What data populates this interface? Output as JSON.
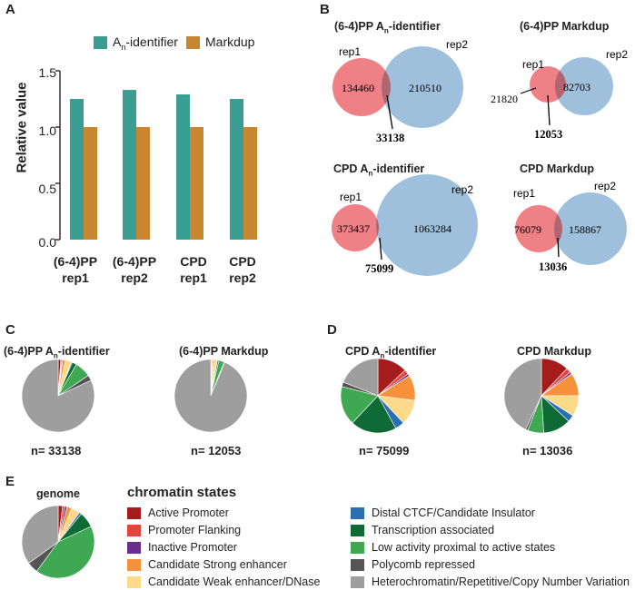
{
  "panels": {
    "a": "A",
    "b": "B",
    "c": "C",
    "d": "D",
    "e": "E"
  },
  "colors": {
    "identifier": "#3a9e92",
    "markdup": "#c8862e",
    "rep1": "#ee8086",
    "rep2": "#9fc0dd",
    "overlap": "#b2646f"
  },
  "chart_data": {
    "type": "bar",
    "ylabel": "Relative value",
    "ylim": [
      0,
      1.5
    ],
    "yticks": [
      "0.0",
      "0.5",
      "1.0",
      "1.5"
    ],
    "yticks_values": [
      0,
      0.5,
      1.0,
      1.5
    ],
    "categories": [
      {
        "line1": "(6-4)PP",
        "line2": "rep1"
      },
      {
        "line1": "(6-4)PP",
        "line2": "rep2"
      },
      {
        "line1": "CPD",
        "line2": "rep1"
      },
      {
        "line1": "CPD",
        "line2": "rep2"
      }
    ],
    "series": [
      {
        "name": "A",
        "sub": "n",
        "suffix": "-identifier",
        "values": [
          1.25,
          1.33,
          1.29,
          1.25
        ]
      },
      {
        "name": "Markdup",
        "values": [
          1.0,
          1.0,
          1.0,
          1.0
        ]
      }
    ]
  },
  "venn": [
    {
      "title_a": "(6-4)PP A",
      "title_sub": "n",
      "title_b": "-identifier",
      "rep1_label": "rep1",
      "rep2_label": "rep2",
      "rep1_only": "134460",
      "rep2_only": "210510",
      "overlap": "33138"
    },
    {
      "title_a": "(6-4)PP Markdup",
      "title_sub": "",
      "title_b": "",
      "rep1_label": "rep1",
      "rep2_label": "rep2",
      "rep1_only": "21820",
      "rep2_only": "82703",
      "overlap": "12053"
    },
    {
      "title_a": "CPD A",
      "title_sub": "n",
      "title_b": "-identifier",
      "rep1_label": "rep1",
      "rep2_label": "rep2",
      "rep1_only": "373437",
      "rep2_only": "1063284",
      "overlap": "75099"
    },
    {
      "title_a": "CPD Markdup",
      "title_sub": "",
      "title_b": "",
      "rep1_label": "rep1",
      "rep2_label": "rep2",
      "rep1_only": "76079",
      "rep2_only": "158867",
      "overlap": "13036"
    }
  ],
  "pies": [
    {
      "title_a": "(6-4)PP A",
      "title_sub": "n",
      "title_b": "-identifier",
      "n_label": "n= 33138",
      "shares": [
        0.012,
        0.004,
        0.004,
        0.012,
        0.028,
        0.004,
        0.02,
        0.072,
        0.024,
        0.82
      ]
    },
    {
      "title_a": "(6-4)PP Markdup",
      "title_sub": "",
      "title_b": "",
      "n_label": "n= 12053",
      "shares": [
        0.004,
        0.002,
        0.002,
        0.006,
        0.014,
        0.002,
        0.006,
        0.024,
        0.004,
        0.936
      ]
    },
    {
      "title_a": "CPD A",
      "title_sub": "n",
      "title_b": "-identifier",
      "n_label": "n= 75099",
      "shares": [
        0.13,
        0.02,
        0.01,
        0.11,
        0.11,
        0.04,
        0.2,
        0.17,
        0.02,
        0.19
      ]
    },
    {
      "title_a": "CPD Markdup",
      "title_sub": "",
      "title_b": "",
      "n_label": "n= 13036",
      "shares": [
        0.12,
        0.02,
        0.01,
        0.1,
        0.09,
        0.03,
        0.12,
        0.07,
        0.01,
        0.43
      ]
    },
    {
      "title_a": "genome",
      "title_sub": "",
      "title_b": "",
      "n_label": "",
      "shares": [
        0.02,
        0.01,
        0.01,
        0.02,
        0.04,
        0.01,
        0.07,
        0.42,
        0.05,
        0.35
      ]
    }
  ],
  "legend": {
    "title": "chromatin states",
    "items": [
      {
        "label": "Active Promoter",
        "color": "#a61c1c"
      },
      {
        "label": "Promoter Flanking",
        "color": "#e8433a"
      },
      {
        "label": "Inactive Promoter",
        "color": "#6b2d91"
      },
      {
        "label": "Candidate Strong enhancer",
        "color": "#f7923a"
      },
      {
        "label": "Candidate Weak enhancer/DNase",
        "color": "#fdd98a"
      },
      {
        "label": "Distal CTCF/Candidate Insulator",
        "color": "#2b6fb3"
      },
      {
        "label": "Transcription associated",
        "color": "#0f6b35"
      },
      {
        "label": "Low activity proximal to active states",
        "color": "#3ea853"
      },
      {
        "label": "Polycomb repressed",
        "color": "#555555"
      },
      {
        "label": "Heterochromatin/Repetitive/Copy Number Variation",
        "color": "#9e9e9e"
      }
    ]
  }
}
